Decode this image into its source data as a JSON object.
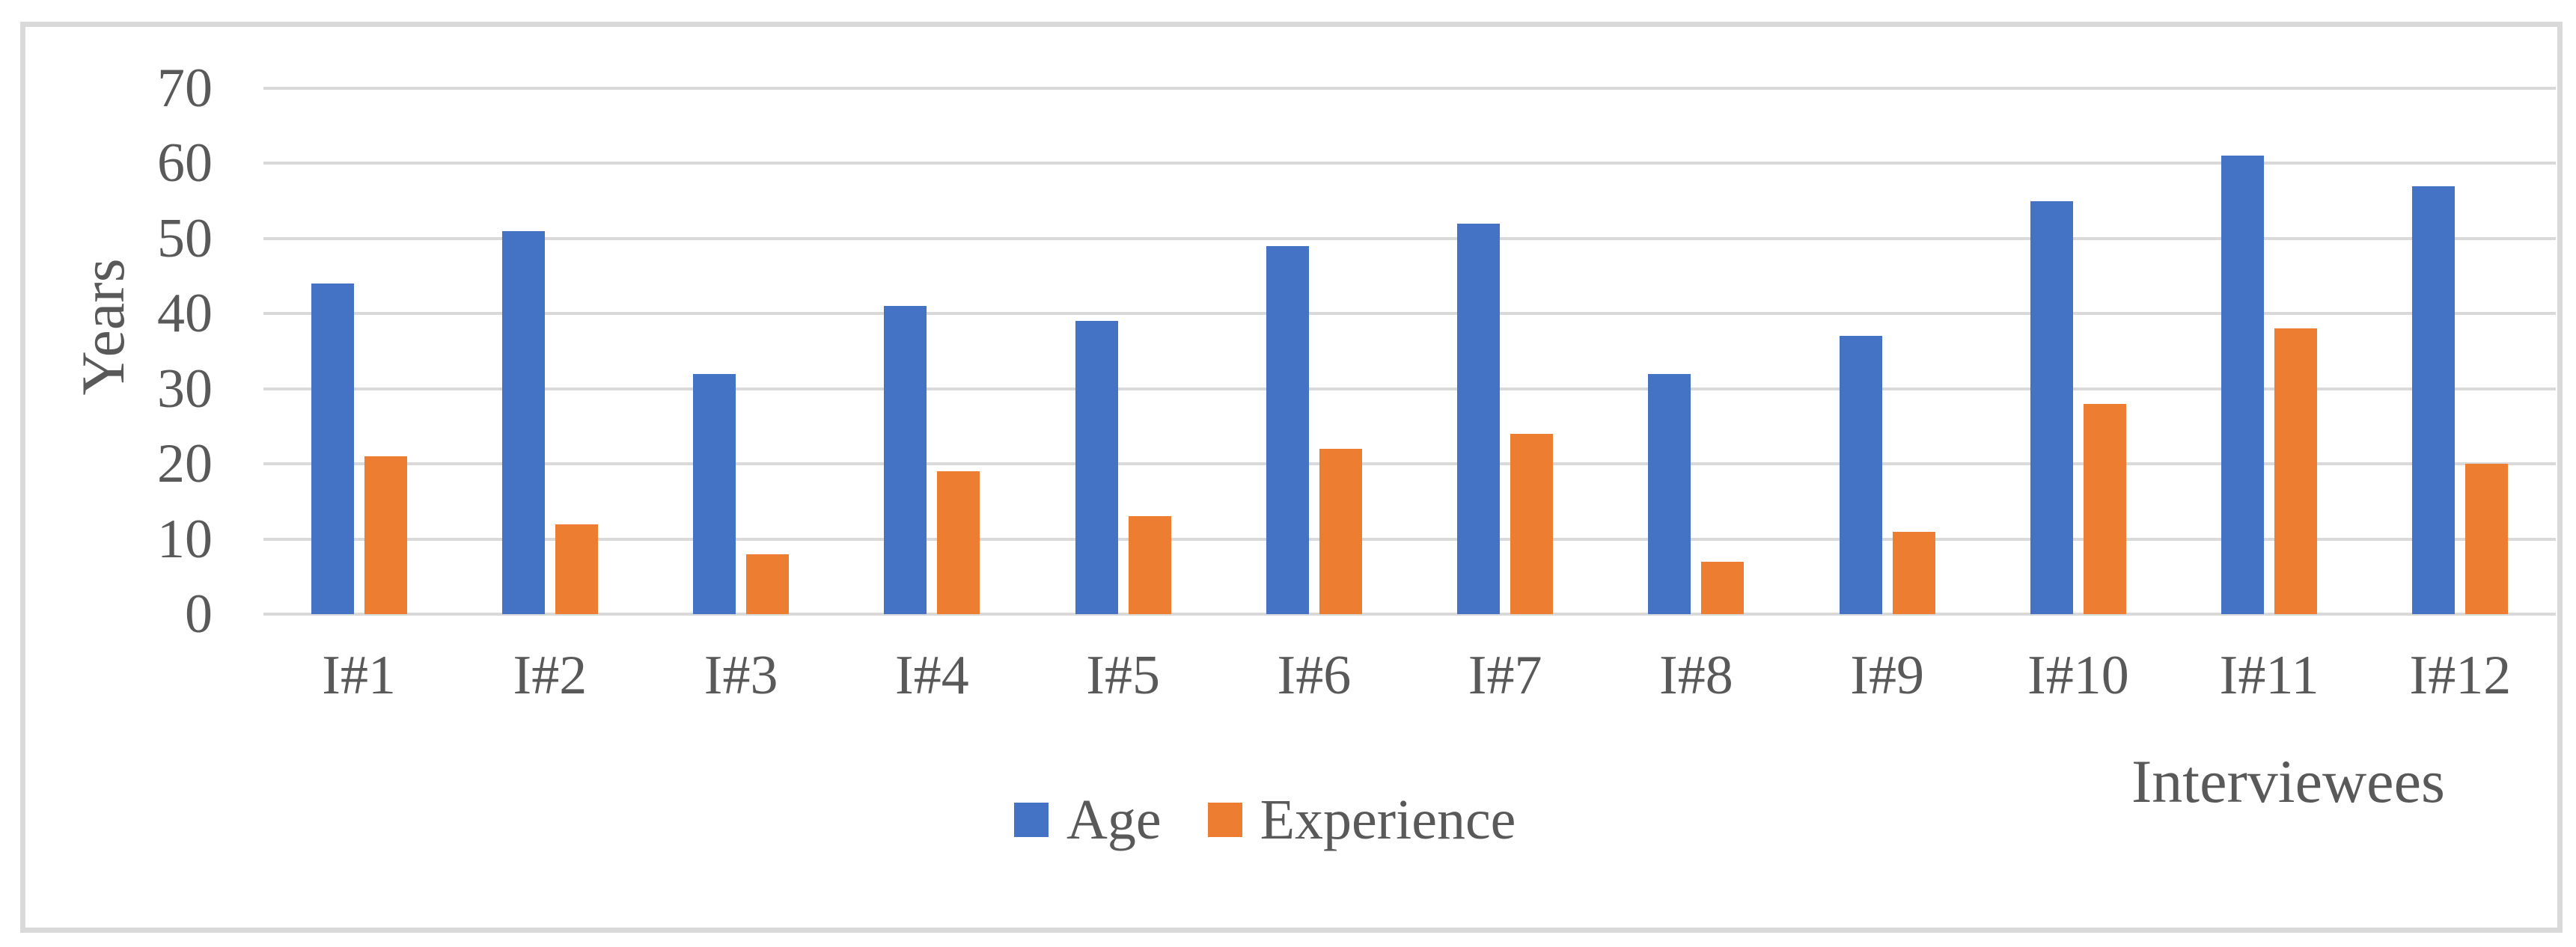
{
  "chart_data": {
    "type": "bar",
    "categories": [
      "I#1",
      "I#2",
      "I#3",
      "I#4",
      "I#5",
      "I#6",
      "I#7",
      "I#8",
      "I#9",
      "I#10",
      "I#11",
      "I#12"
    ],
    "series": [
      {
        "name": "Age",
        "color": "#4472C4",
        "values": [
          44,
          51,
          32,
          41,
          39,
          49,
          52,
          32,
          37,
          55,
          61,
          57
        ]
      },
      {
        "name": "Experience",
        "color": "#ED7D31",
        "values": [
          21,
          12,
          8,
          19,
          13,
          22,
          24,
          7,
          11,
          28,
          38,
          20
        ]
      }
    ],
    "title": "",
    "xlabel": "Interviewees",
    "ylabel": "Years",
    "ylim": [
      0,
      70
    ],
    "ytick_step": 10,
    "yticks": [
      0,
      10,
      20,
      30,
      40,
      50,
      60,
      70
    ],
    "grid": "horizontal",
    "gridline_color": "#D9D9D9",
    "frame_border_color": "#D9D9D9",
    "text_color": "#595959",
    "legend_position": "bottom"
  }
}
